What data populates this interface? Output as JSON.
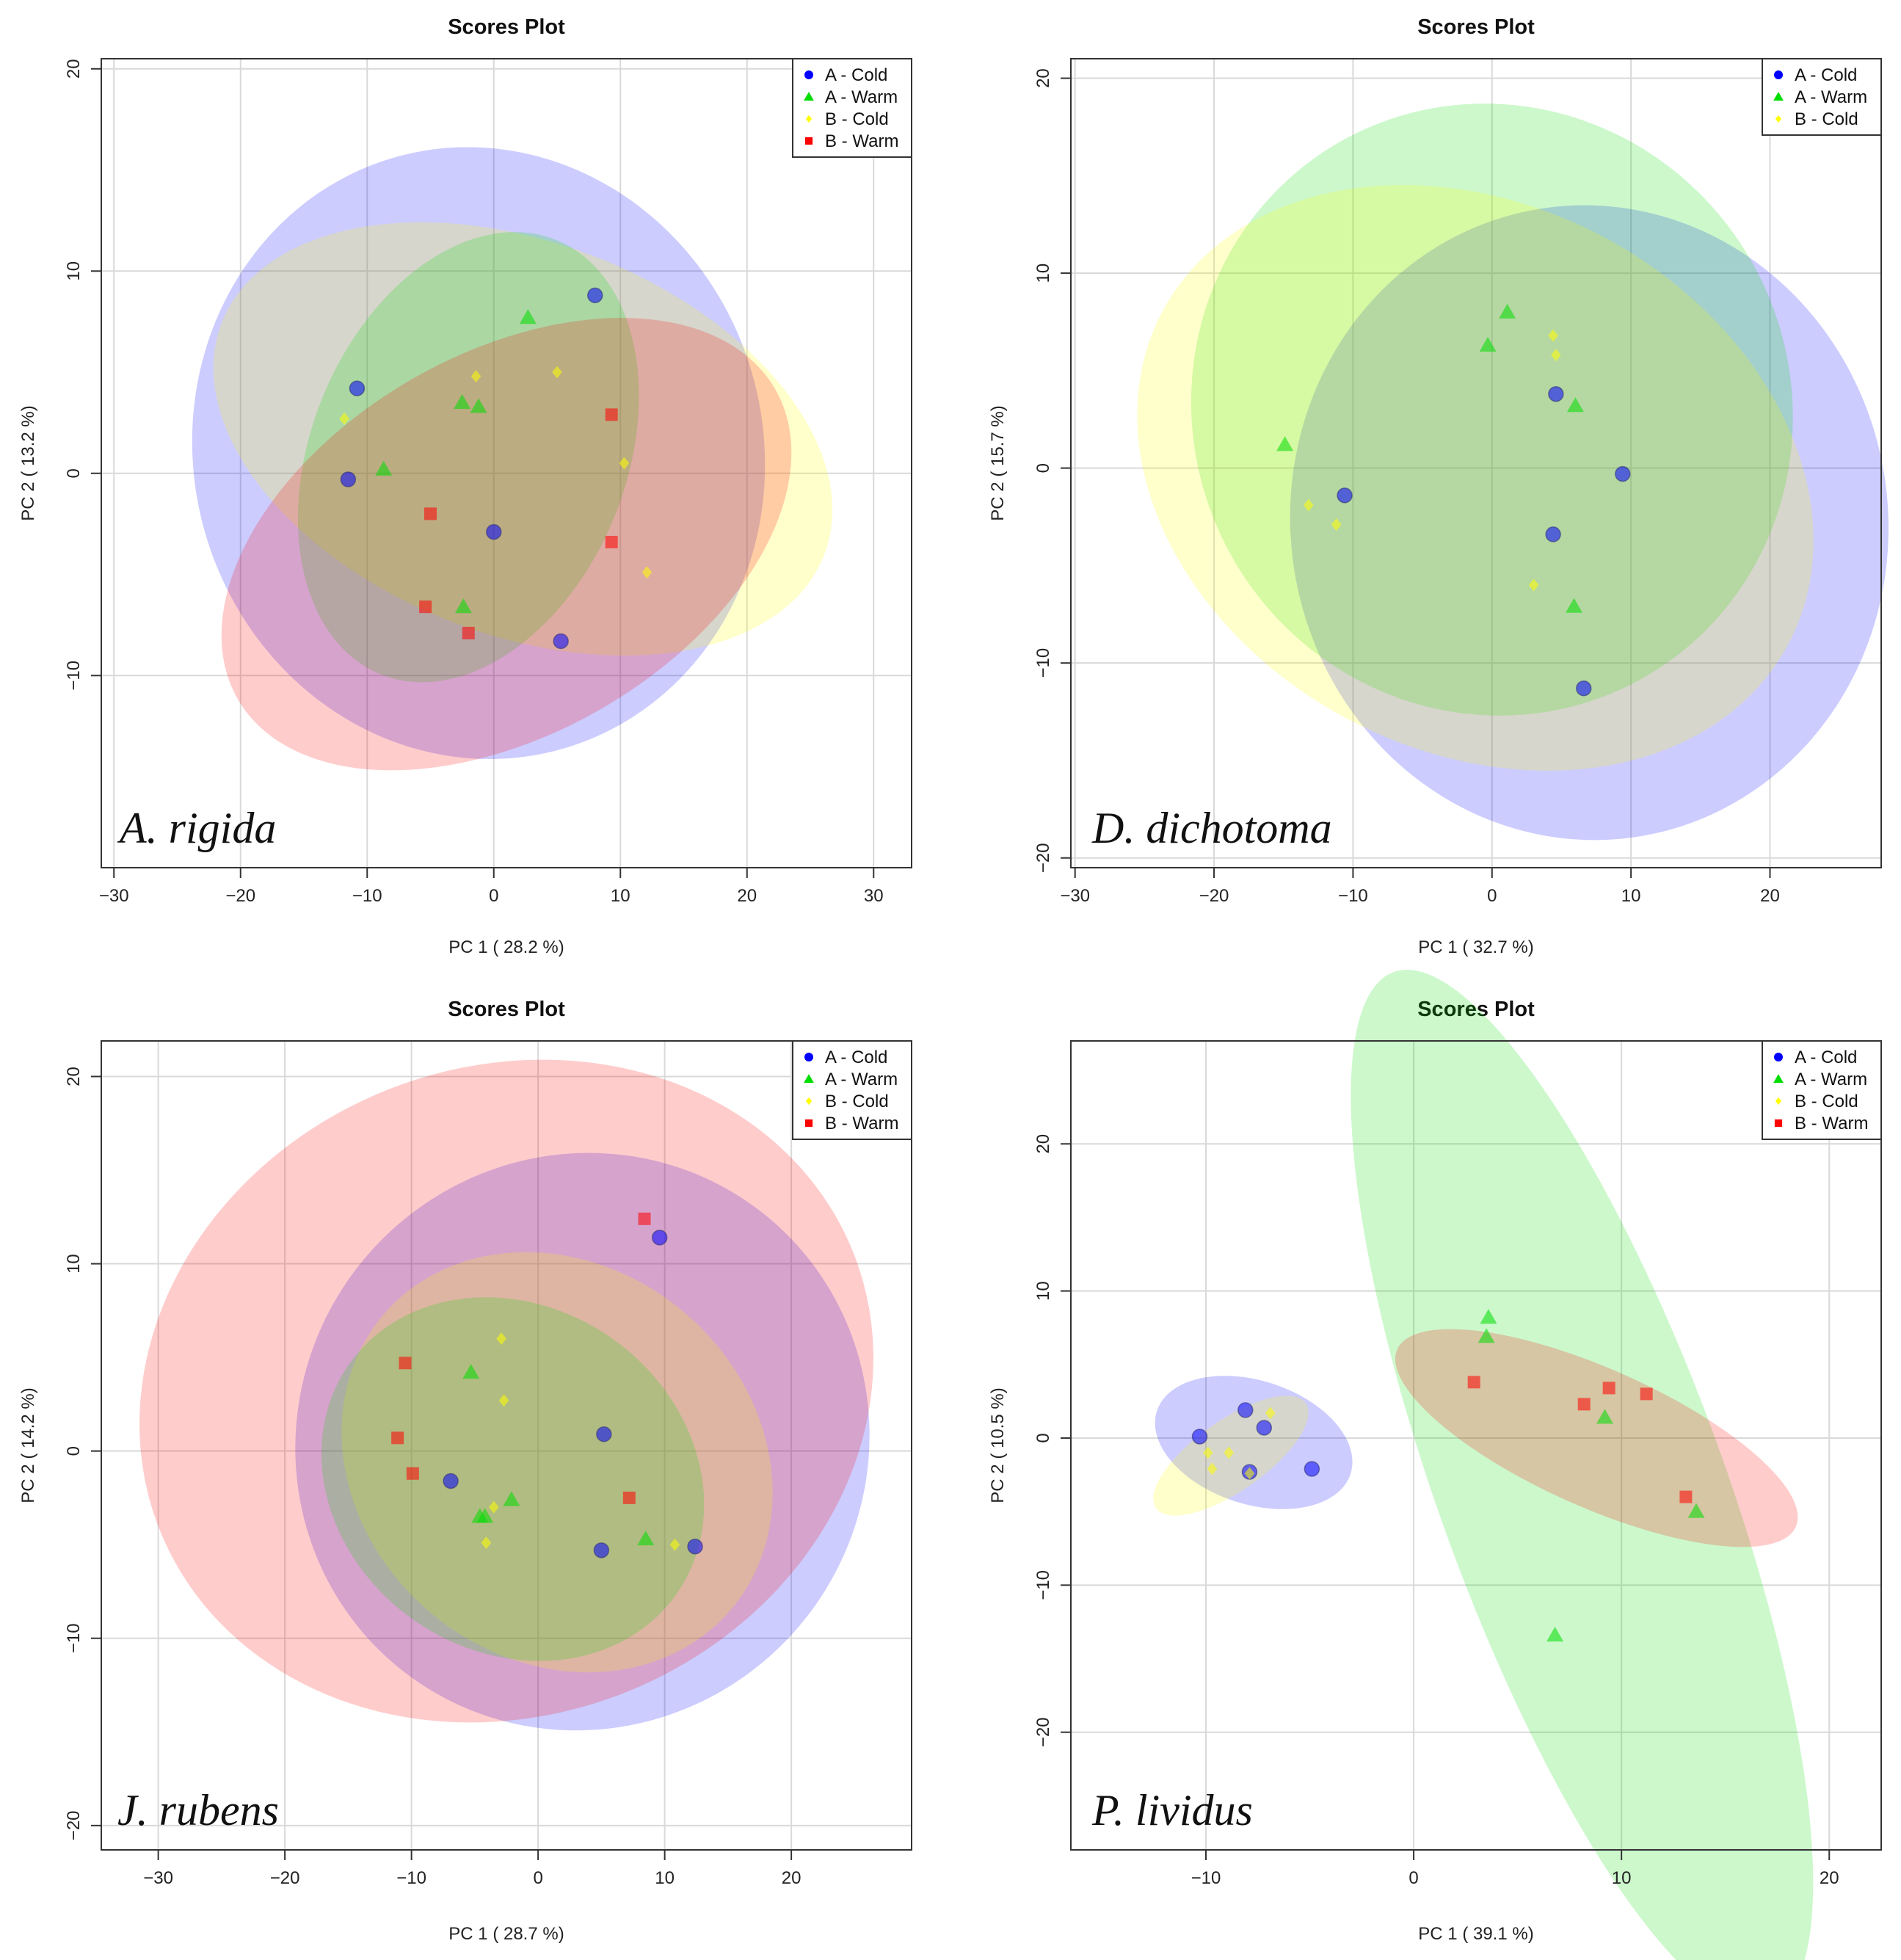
{
  "colors": {
    "A - Cold": "#0000ff",
    "A - Warm": "#00dd00",
    "B - Cold": "#ffff00",
    "B - Warm": "#ff0000"
  },
  "chart_data": [
    {
      "type": "scatter",
      "title": "Scores Plot",
      "species_label": "A. rigida",
      "xlabel": "PC 1 ( 28.2 %)",
      "ylabel": "PC 2 ( 13.2 %)",
      "xlim": [
        -31,
        33
      ],
      "ylim": [
        -19.5,
        20.5
      ],
      "xticks": [
        -30,
        -20,
        -10,
        0,
        10,
        20,
        30
      ],
      "yticks": [
        -10,
        0,
        10,
        20
      ],
      "grid": true,
      "legend_position": "top-right",
      "legend": [
        "A - Cold",
        "A - Warm",
        "B - Cold",
        "B - Warm"
      ],
      "series": [
        {
          "name": "A - Cold",
          "marker": "circle",
          "points": [
            [
              8,
              8.8
            ],
            [
              -10.8,
              4.2
            ],
            [
              -11.5,
              -0.3
            ],
            [
              0,
              -2.9
            ],
            [
              5.3,
              -8.3
            ]
          ]
        },
        {
          "name": "A - Warm",
          "marker": "triangle",
          "points": [
            [
              2.7,
              7.7
            ],
            [
              -2.5,
              3.5
            ],
            [
              -1.2,
              3.3
            ],
            [
              -8.7,
              0.2
            ],
            [
              -2.4,
              -6.6
            ]
          ]
        },
        {
          "name": "B - Cold",
          "marker": "diamond",
          "points": [
            [
              -1.4,
              4.8
            ],
            [
              5,
              5
            ],
            [
              -11.8,
              2.7
            ],
            [
              10.3,
              0.5
            ],
            [
              12.1,
              -4.9
            ]
          ]
        },
        {
          "name": "B - Warm",
          "marker": "square",
          "points": [
            [
              9.3,
              2.9
            ],
            [
              -5,
              -2
            ],
            [
              9.3,
              -3.4
            ],
            [
              -5.4,
              -6.6
            ],
            [
              -2,
              -7.9
            ]
          ]
        }
      ],
      "ellipses": [
        {
          "series": "A - Cold",
          "cx": -1.2,
          "cy": 1,
          "rx": 22.5,
          "ry": 15.2,
          "angle": 15
        },
        {
          "series": "B - Cold",
          "cx": 2.3,
          "cy": 1.7,
          "rx": 25.5,
          "ry": 9.7,
          "angle": -21
        },
        {
          "series": "A - Warm",
          "cx": -2,
          "cy": 0.8,
          "rx": 18.5,
          "ry": 7.8,
          "angle": 68
        },
        {
          "series": "B - Warm",
          "cx": 1,
          "cy": -3.5,
          "rx": 24.5,
          "ry": 9.4,
          "angle": 30
        }
      ]
    },
    {
      "type": "scatter",
      "title": "Scores Plot",
      "species_label": "D. dichotoma",
      "xlabel": "PC 1 ( 32.7 %)",
      "ylabel": "PC 2 ( 15.7 %)",
      "xlim": [
        -30.3,
        28
      ],
      "ylim": [
        -20.5,
        21
      ],
      "xticks": [
        -30,
        -20,
        -10,
        0,
        10,
        20
      ],
      "yticks": [
        -20,
        -10,
        0,
        10,
        20
      ],
      "grid": true,
      "legend_position": "top-right",
      "legend": [
        "A - Cold",
        "A - Warm",
        "B - Cold"
      ],
      "series": [
        {
          "name": "A - Cold",
          "marker": "circle",
          "points": [
            [
              4.6,
              3.8
            ],
            [
              9.4,
              -0.3
            ],
            [
              -10.6,
              -1.4
            ],
            [
              4.4,
              -3.4
            ],
            [
              6.6,
              -11.3
            ]
          ]
        },
        {
          "name": "A - Warm",
          "marker": "triangle",
          "points": [
            [
              1.1,
              8
            ],
            [
              -0.3,
              6.3
            ],
            [
              6,
              3.2
            ],
            [
              -14.9,
              1.2
            ],
            [
              5.9,
              -7.1
            ]
          ]
        },
        {
          "name": "B - Cold",
          "marker": "diamond",
          "points": [
            [
              4.4,
              6.8
            ],
            [
              4.6,
              5.8
            ],
            [
              -13.2,
              -1.9
            ],
            [
              -11.2,
              -2.9
            ],
            [
              3,
              -6
            ]
          ]
        }
      ],
      "ellipses": [
        {
          "series": "A - Cold",
          "cx": 7,
          "cy": -2.8,
          "rx": 21.5,
          "ry": 16.3,
          "angle": 8
        },
        {
          "series": "A - Warm",
          "cx": 0,
          "cy": 3,
          "rx": 21.5,
          "ry": 15.8,
          "angle": 28
        },
        {
          "series": "B - Cold",
          "cx": -1.2,
          "cy": -0.5,
          "rx": 25.5,
          "ry": 14,
          "angle": -28
        }
      ]
    },
    {
      "type": "scatter",
      "title": "Scores Plot",
      "species_label": "J. rubens",
      "xlabel": "PC 1 ( 28.7 %)",
      "ylabel": "PC 2 ( 14.2 %)",
      "xlim": [
        -34.5,
        29.5
      ],
      "ylim": [
        -21.3,
        21.9
      ],
      "xticks": [
        -30,
        -20,
        -10,
        0,
        10,
        20
      ],
      "yticks": [
        -20,
        -10,
        0,
        10,
        20
      ],
      "grid": true,
      "legend_position": "top-right",
      "legend": [
        "A - Cold",
        "A - Warm",
        "B - Cold",
        "B - Warm"
      ],
      "series": [
        {
          "name": "A - Cold",
          "marker": "circle",
          "points": [
            [
              9.6,
              11.4
            ],
            [
              5.2,
              0.9
            ],
            [
              -6.9,
              -1.6
            ],
            [
              5,
              -5.3
            ],
            [
              12.4,
              -5.1
            ]
          ]
        },
        {
          "name": "A - Warm",
          "marker": "triangle",
          "points": [
            [
              -5.3,
              4.2
            ],
            [
              -2.1,
              -2.6
            ],
            [
              -4.2,
              -3.5
            ],
            [
              -4.6,
              -3.5
            ],
            [
              8.5,
              -4.7
            ]
          ]
        },
        {
          "name": "B - Cold",
          "marker": "diamond",
          "points": [
            [
              -2.9,
              6
            ],
            [
              -2.7,
              2.7
            ],
            [
              -3.5,
              -3
            ],
            [
              -4.1,
              -4.9
            ],
            [
              10.8,
              -5
            ]
          ]
        },
        {
          "name": "B - Warm",
          "marker": "square",
          "points": [
            [
              8.4,
              12.4
            ],
            [
              -10.5,
              4.7
            ],
            [
              -11.1,
              0.7
            ],
            [
              -9.9,
              -1.2
            ],
            [
              7.2,
              -2.5
            ]
          ]
        }
      ],
      "ellipses": [
        {
          "series": "A - Cold",
          "cx": 3.5,
          "cy": 0.5,
          "rx": 23,
          "ry": 15.2,
          "angle": 52
        },
        {
          "series": "B - Warm",
          "cx": -2.5,
          "cy": 3.2,
          "rx": 29.5,
          "ry": 17.3,
          "angle": 22
        },
        {
          "series": "B - Cold",
          "cx": 1.5,
          "cy": -0.6,
          "rx": 18,
          "ry": 10.5,
          "angle": -40
        },
        {
          "series": "A - Warm",
          "cx": -2,
          "cy": -1.5,
          "rx": 15.8,
          "ry": 9.2,
          "angle": -35
        }
      ]
    },
    {
      "type": "scatter",
      "title": "Scores Plot",
      "species_label": "P. lividus",
      "xlabel": "PC 1 ( 39.1 %)",
      "ylabel": "PC 2 ( 10.5 %)",
      "xlim": [
        -16.5,
        22.5
      ],
      "ylim": [
        -28,
        27
      ],
      "xticks": [
        -10,
        0,
        10,
        20
      ],
      "yticks": [
        -20,
        -10,
        0,
        10,
        20
      ],
      "grid": true,
      "legend_position": "top-right",
      "legend": [
        "A - Cold",
        "A - Warm",
        "B - Cold",
        "B - Warm"
      ],
      "series": [
        {
          "name": "A - Cold",
          "marker": "circle",
          "points": [
            [
              -10.3,
              0.1
            ],
            [
              -8.1,
              1.9
            ],
            [
              -7.2,
              0.7
            ],
            [
              -7.9,
              -2.3
            ],
            [
              -4.9,
              -2.1
            ]
          ]
        },
        {
          "name": "A - Warm",
          "marker": "triangle",
          "points": [
            [
              3.6,
              8.2
            ],
            [
              3.5,
              6.9
            ],
            [
              9.2,
              1.4
            ],
            [
              13.6,
              -5
            ],
            [
              6.8,
              -13.4
            ]
          ]
        },
        {
          "name": "B - Cold",
          "marker": "diamond",
          "points": [
            [
              -6.9,
              1.7
            ],
            [
              -8.9,
              -1
            ],
            [
              -9.9,
              -1
            ],
            [
              -9.7,
              -2.1
            ],
            [
              -7.9,
              -2.4
            ]
          ]
        },
        {
          "name": "B - Warm",
          "marker": "square",
          "points": [
            [
              2.9,
              3.8
            ],
            [
              9.4,
              3.4
            ],
            [
              11.2,
              3
            ],
            [
              8.2,
              2.3
            ],
            [
              13.1,
              -4
            ]
          ]
        }
      ],
      "ellipses": [
        {
          "series": "A - Warm",
          "cx": 8.1,
          "cy": -3.5,
          "rx": 26.5,
          "ry": 9.7,
          "angle": -70
        },
        {
          "series": "B - Warm",
          "cx": 8.8,
          "cy": 0,
          "rx": 10.5,
          "ry": 4.7,
          "angle": -24
        },
        {
          "series": "A - Cold",
          "cx": -7.7,
          "cy": -0.3,
          "rx": 4.9,
          "ry": 4.2,
          "angle": -18
        },
        {
          "series": "B - Cold",
          "cx": -8.8,
          "cy": -1.2,
          "rx": 4.4,
          "ry": 2.4,
          "angle": 35
        }
      ]
    }
  ]
}
